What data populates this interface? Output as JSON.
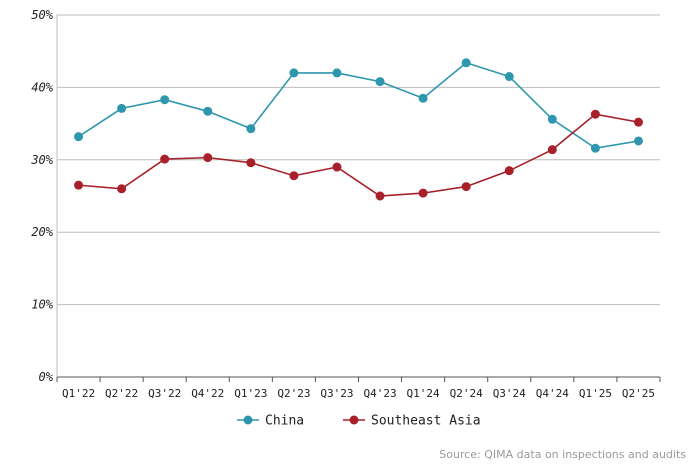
{
  "chart_data": {
    "type": "line",
    "categories": [
      "Q1'22",
      "Q2'22",
      "Q3'22",
      "Q4'22",
      "Q1'23",
      "Q2'23",
      "Q3'23",
      "Q4'23",
      "Q1'24",
      "Q2'24",
      "Q3'24",
      "Q4'24",
      "Q1'25",
      "Q2'25"
    ],
    "series": [
      {
        "name": "China",
        "color": "#2e97ad",
        "values": [
          33.2,
          37.1,
          38.3,
          36.7,
          34.3,
          42.0,
          42.0,
          40.8,
          38.5,
          43.4,
          41.5,
          35.6,
          31.6,
          32.6
        ]
      },
      {
        "name": "Southeast Asia",
        "color": "#a8202a",
        "values": [
          26.5,
          26.0,
          30.1,
          30.3,
          29.6,
          27.8,
          29.0,
          25.0,
          25.4,
          26.3,
          28.5,
          31.4,
          36.3,
          35.2
        ]
      }
    ],
    "ylim": [
      0,
      50
    ],
    "yticks": [
      0,
      10,
      20,
      30,
      40,
      50
    ],
    "ytick_labels": [
      "0%",
      "10%",
      "20%",
      "30%",
      "40%",
      "50%"
    ],
    "grid": true,
    "legend": "bottom-center"
  },
  "source": "Source: QIMA data on inspections and audits"
}
